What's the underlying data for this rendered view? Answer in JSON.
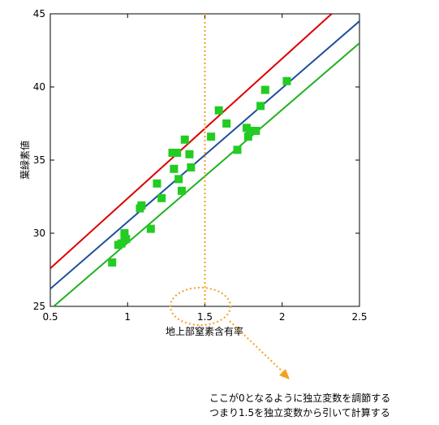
{
  "chart_data": {
    "type": "scatter",
    "xlabel": "地上部窒素含有率",
    "ylabel": "葉緑素値",
    "xlim": [
      0.5,
      2.5
    ],
    "ylim": [
      25,
      45
    ],
    "xticks": [
      "0.5",
      "1",
      "1.5",
      "2",
      "2.5"
    ],
    "yticks": [
      "25",
      "30",
      "35",
      "40",
      "45"
    ],
    "grid": false,
    "legend": "none",
    "points": [
      {
        "x": 0.9,
        "y": 28.0
      },
      {
        "x": 0.94,
        "y": 29.2
      },
      {
        "x": 0.96,
        "y": 29.3
      },
      {
        "x": 0.98,
        "y": 29.8
      },
      {
        "x": 0.98,
        "y": 30.0
      },
      {
        "x": 0.99,
        "y": 29.6
      },
      {
        "x": 1.08,
        "y": 31.7
      },
      {
        "x": 1.09,
        "y": 31.9
      },
      {
        "x": 1.15,
        "y": 30.3
      },
      {
        "x": 1.19,
        "y": 33.4
      },
      {
        "x": 1.22,
        "y": 32.4
      },
      {
        "x": 1.29,
        "y": 35.5
      },
      {
        "x": 1.3,
        "y": 34.4
      },
      {
        "x": 1.32,
        "y": 35.5
      },
      {
        "x": 1.33,
        "y": 33.7
      },
      {
        "x": 1.35,
        "y": 32.9
      },
      {
        "x": 1.37,
        "y": 36.4
      },
      {
        "x": 1.4,
        "y": 35.4
      },
      {
        "x": 1.41,
        "y": 34.5
      },
      {
        "x": 1.54,
        "y": 36.6
      },
      {
        "x": 1.59,
        "y": 38.4
      },
      {
        "x": 1.64,
        "y": 37.5
      },
      {
        "x": 1.71,
        "y": 35.7
      },
      {
        "x": 1.77,
        "y": 37.2
      },
      {
        "x": 1.78,
        "y": 36.6
      },
      {
        "x": 1.79,
        "y": 37.0
      },
      {
        "x": 1.83,
        "y": 37.0
      },
      {
        "x": 1.86,
        "y": 38.7
      },
      {
        "x": 1.89,
        "y": 39.8
      },
      {
        "x": 2.03,
        "y": 40.4
      }
    ],
    "lines": [
      {
        "color": "#dd0000",
        "x": [
          0.5,
          2.32
        ],
        "y": [
          27.6,
          45.0
        ]
      },
      {
        "color": "#1f4e9c",
        "x": [
          0.5,
          2.5
        ],
        "y": [
          26.2,
          44.5
        ]
      },
      {
        "color": "#22b022",
        "x": [
          0.5,
          2.5
        ],
        "y": [
          24.8,
          43.0
        ]
      }
    ],
    "reference_line": {
      "x": 1.5,
      "color": "#f5a020",
      "style": "dotted"
    },
    "point_color": "#22cc22"
  },
  "annotation": {
    "line1": "ここが0となるように独立変数を調節する",
    "line2": "つまり1.5を独立変数から引いて計算する",
    "color": "#f5a020"
  }
}
